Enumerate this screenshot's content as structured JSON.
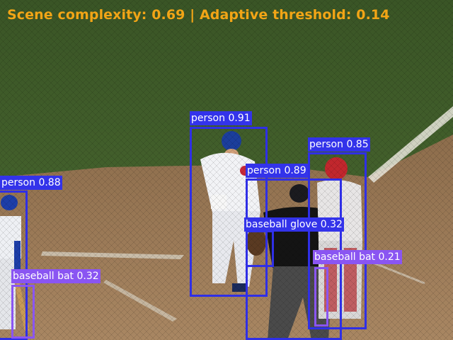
{
  "hud": {
    "text": "Scene complexity: 0.69 | Adaptive threshold: 0.14",
    "color": "#f2a516"
  },
  "colors": {
    "person_box": "#2f2fe6",
    "baseball_bat_box": "#8a55f2",
    "baseball_glove_box": "#2f2fe6",
    "label_text": "#ffffff",
    "grass": "#3f5a2a",
    "dirt": "#9a7a56"
  },
  "detections": [
    {
      "label": "person 0.91",
      "class": "person"
    },
    {
      "label": "person 0.89",
      "class": "person"
    },
    {
      "label": "person 0.85",
      "class": "person"
    },
    {
      "label": "person 0.88",
      "class": "person"
    },
    {
      "label": "baseball glove 0.32",
      "class": "baseball glove"
    },
    {
      "label": "baseball bat 0.21",
      "class": "baseball bat"
    },
    {
      "label": "baseball bat 0.32",
      "class": "baseball bat"
    }
  ]
}
